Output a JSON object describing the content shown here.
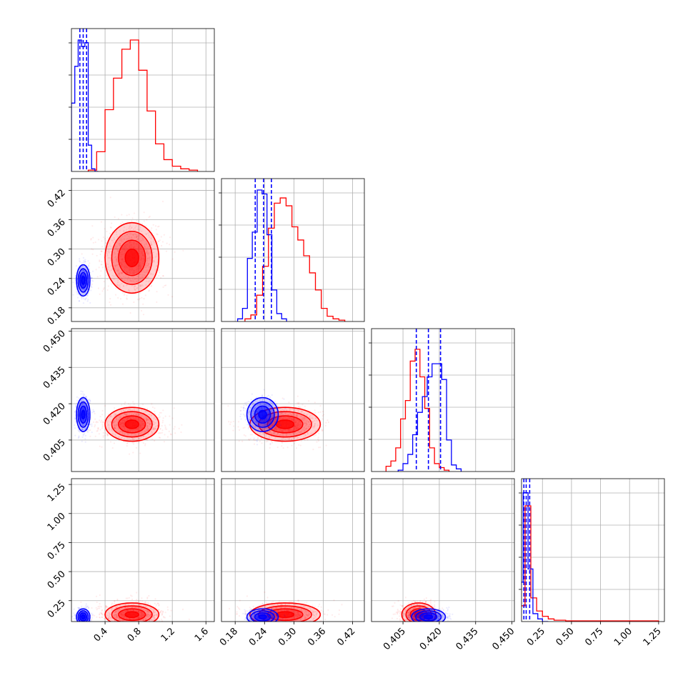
{
  "colors": {
    "samples_a": "#0000ff",
    "samples_b": "#ff0000",
    "grid": "#b0b0b0"
  },
  "chart_data": {
    "type": "corner",
    "grid": true,
    "parameters": [
      {
        "range": [
          0.0,
          1.7
        ],
        "ticks": [
          0.4,
          0.8,
          1.2,
          1.6
        ],
        "tick_labels": [
          "0.4",
          "0.8",
          "1.2",
          "1.6"
        ]
      },
      {
        "range": [
          0.152,
          0.444
        ],
        "ticks": [
          0.18,
          0.24,
          0.3,
          0.36,
          0.42
        ],
        "tick_labels": [
          "0.18",
          "0.24",
          "0.30",
          "0.36",
          "0.42"
        ]
      },
      {
        "range": [
          0.392,
          0.451
        ],
        "ticks": [
          0.405,
          0.42,
          0.435,
          0.45
        ],
        "tick_labels": [
          "0.405",
          "0.420",
          "0.435",
          "0.450"
        ]
      },
      {
        "range": [
          0.07,
          1.3
        ],
        "ticks": [
          0.25,
          0.5,
          0.75,
          1.0,
          1.25
        ],
        "tick_labels": [
          "0.25",
          "0.50",
          "0.75",
          "1.00",
          "1.25"
        ]
      }
    ],
    "series": [
      {
        "color": "#0000ff",
        "means": [
          0.14,
          0.236,
          0.4155,
          0.11
        ],
        "sds": [
          0.04,
          0.016,
          0.0035,
          0.035
        ],
        "quantiles": [
          [
            0.1,
            0.14,
            0.18
          ],
          [
            0.221,
            0.238,
            0.254
          ],
          [
            0.4105,
            0.4155,
            0.4205
          ],
          [
            0.09,
            0.11,
            0.14
          ]
        ],
        "histograms": [
          {
            "edges": [
              0.0,
              0.04,
              0.08,
              0.12,
              0.16,
              0.2,
              0.24,
              0.28,
              0.32
            ],
            "counts": [
              0.52,
              0.8,
              1.0,
              0.95,
              0.98,
              0.2,
              0.02,
              0.0
            ]
          },
          {
            "edges": [
              0.185,
              0.195,
              0.205,
              0.215,
              0.225,
              0.235,
              0.245,
              0.255,
              0.265,
              0.275,
              0.285
            ],
            "counts": [
              0.02,
              0.1,
              0.48,
              0.68,
              1.0,
              0.97,
              0.66,
              0.24,
              0.06,
              0.02
            ]
          },
          {
            "edges": [
              0.403,
              0.405,
              0.407,
              0.409,
              0.411,
              0.413,
              0.415,
              0.417,
              0.419,
              0.421,
              0.423,
              0.425,
              0.427,
              0.429
            ],
            "counts": [
              0.01,
              0.06,
              0.13,
              0.28,
              0.45,
              0.57,
              0.72,
              0.82,
              0.82,
              0.7,
              0.24,
              0.05,
              0.02
            ]
          },
          {
            "edges": [
              0.0,
              0.042,
              0.084,
              0.126,
              0.168,
              0.21,
              0.25,
              0.3
            ],
            "counts": [
              0.02,
              0.3,
              0.98,
              0.4,
              0.06,
              0.02,
              0.0
            ]
          }
        ]
      },
      {
        "color": "#ff0000",
        "means": [
          0.72,
          0.282,
          0.4115,
          0.13
        ],
        "sds": [
          0.16,
          0.036,
          0.0035,
          0.05
        ],
        "quantiles": [],
        "histograms": [
          {
            "edges": [
              0.2,
              0.3,
              0.4,
              0.5,
              0.6,
              0.7,
              0.8,
              0.9,
              1.0,
              1.1,
              1.2,
              1.3,
              1.4,
              1.5
            ],
            "counts": [
              0.01,
              0.15,
              0.47,
              0.71,
              0.93,
              1.0,
              0.77,
              0.46,
              0.21,
              0.09,
              0.04,
              0.02,
              0.01
            ]
          },
          {
            "edges": [
              0.2,
              0.212,
              0.224,
              0.236,
              0.248,
              0.26,
              0.272,
              0.284,
              0.296,
              0.308,
              0.32,
              0.332,
              0.344,
              0.356,
              0.368,
              0.38,
              0.392,
              0.404
            ],
            "counts": [
              0.02,
              0.05,
              0.2,
              0.42,
              0.71,
              0.9,
              0.94,
              0.88,
              0.72,
              0.62,
              0.5,
              0.37,
              0.24,
              0.1,
              0.04,
              0.02,
              0.01
            ]
          },
          {
            "edges": [
              0.398,
              0.4,
              0.402,
              0.404,
              0.406,
              0.408,
              0.41,
              0.412,
              0.414,
              0.416,
              0.418,
              0.42,
              0.422,
              0.424
            ],
            "counts": [
              0.04,
              0.08,
              0.18,
              0.4,
              0.54,
              0.84,
              0.93,
              0.72,
              0.48,
              0.18,
              0.06,
              0.03,
              0.01
            ]
          },
          {
            "edges": [
              0.0,
              0.05,
              0.1,
              0.15,
              0.2,
              0.25,
              0.3,
              0.35,
              0.45,
              1.25
            ],
            "counts": [
              0.02,
              0.12,
              0.88,
              0.18,
              0.08,
              0.04,
              0.02,
              0.01,
              0.005
            ]
          }
        ]
      }
    ]
  }
}
